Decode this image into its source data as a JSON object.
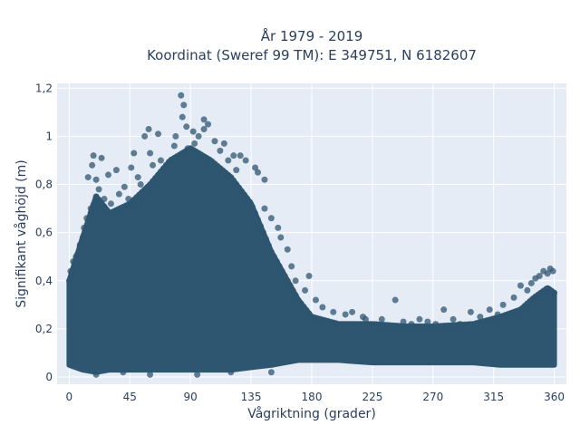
{
  "chart_data": {
    "type": "scatter",
    "title_line1": "År 1979 - 2019",
    "title_line2": "Koordinat (Sweref 99 TM): E 349751, N 6182607",
    "xlabel": "Vågriktning (grader)",
    "ylabel": "Signifikant våghöjd (m)",
    "xlim": [
      -9,
      369
    ],
    "ylim": [
      -0.03,
      1.22
    ],
    "xticks": [
      0,
      45,
      90,
      135,
      180,
      225,
      270,
      315,
      360
    ],
    "xtick_labels": [
      "0",
      "45",
      "90",
      "135",
      "180",
      "225",
      "270",
      "315",
      "360"
    ],
    "yticks": [
      0,
      0.2,
      0.4,
      0.6,
      0.8,
      1.0,
      1.2
    ],
    "ytick_labels": [
      "0",
      "0,2",
      "0,4",
      "0,6",
      "0,8",
      "1",
      "1,2"
    ],
    "grid": true,
    "background": "#e5ecf6",
    "marker_color": "#2f5670",
    "envelope": {
      "x": [
        0,
        10,
        20,
        30,
        45,
        60,
        75,
        90,
        105,
        120,
        135,
        150,
        160,
        170,
        180,
        200,
        225,
        250,
        270,
        300,
        320,
        335,
        345,
        355,
        360
      ],
      "y_upper": [
        0.4,
        0.58,
        0.75,
        0.68,
        0.72,
        0.8,
        0.9,
        0.95,
        0.9,
        0.83,
        0.72,
        0.52,
        0.42,
        0.32,
        0.25,
        0.22,
        0.22,
        0.21,
        0.21,
        0.22,
        0.25,
        0.28,
        0.33,
        0.37,
        0.35
      ],
      "y_lower": [
        0.05,
        0.03,
        0.02,
        0.03,
        0.03,
        0.03,
        0.03,
        0.03,
        0.03,
        0.03,
        0.04,
        0.05,
        0.06,
        0.07,
        0.07,
        0.07,
        0.06,
        0.06,
        0.06,
        0.06,
        0.05,
        0.05,
        0.05,
        0.05,
        0.05
      ]
    },
    "points": [
      {
        "x": 83,
        "y": 1.17
      },
      {
        "x": 85,
        "y": 1.13
      },
      {
        "x": 84,
        "y": 1.08
      },
      {
        "x": 100,
        "y": 1.07
      },
      {
        "x": 100,
        "y": 1.03
      },
      {
        "x": 103,
        "y": 1.05
      },
      {
        "x": 92,
        "y": 1.02
      },
      {
        "x": 59,
        "y": 1.03
      },
      {
        "x": 66,
        "y": 1.01
      },
      {
        "x": 56,
        "y": 1.0
      },
      {
        "x": 88,
        "y": 0.95
      },
      {
        "x": 79,
        "y": 1.0
      },
      {
        "x": 87,
        "y": 1.04
      },
      {
        "x": 108,
        "y": 0.98
      },
      {
        "x": 127,
        "y": 0.92
      },
      {
        "x": 131,
        "y": 0.9
      },
      {
        "x": 140,
        "y": 0.85
      },
      {
        "x": 145,
        "y": 0.82
      },
      {
        "x": 138,
        "y": 0.87
      },
      {
        "x": 48,
        "y": 0.93
      },
      {
        "x": 62,
        "y": 0.88
      },
      {
        "x": 18,
        "y": 0.92
      },
      {
        "x": 17,
        "y": 0.88
      },
      {
        "x": 20,
        "y": 0.82
      },
      {
        "x": 24,
        "y": 0.91
      },
      {
        "x": 29,
        "y": 0.84
      },
      {
        "x": 14,
        "y": 0.83
      },
      {
        "x": 46,
        "y": 0.87
      },
      {
        "x": 60,
        "y": 0.93
      },
      {
        "x": 78,
        "y": 0.96
      },
      {
        "x": 93,
        "y": 0.97
      },
      {
        "x": 96,
        "y": 1.0
      },
      {
        "x": 112,
        "y": 0.94
      },
      {
        "x": 118,
        "y": 0.9
      },
      {
        "x": 124,
        "y": 0.86
      },
      {
        "x": 35,
        "y": 0.86
      },
      {
        "x": 51,
        "y": 0.83
      },
      {
        "x": 145,
        "y": 0.7
      },
      {
        "x": 150,
        "y": 0.66
      },
      {
        "x": 155,
        "y": 0.62
      },
      {
        "x": 157,
        "y": 0.58
      },
      {
        "x": 162,
        "y": 0.53
      },
      {
        "x": 165,
        "y": 0.46
      },
      {
        "x": 168,
        "y": 0.4
      },
      {
        "x": 175,
        "y": 0.36
      },
      {
        "x": 178,
        "y": 0.42
      },
      {
        "x": 183,
        "y": 0.32
      },
      {
        "x": 188,
        "y": 0.29
      },
      {
        "x": 196,
        "y": 0.27
      },
      {
        "x": 205,
        "y": 0.26
      },
      {
        "x": 210,
        "y": 0.27
      },
      {
        "x": 218,
        "y": 0.25
      },
      {
        "x": 220,
        "y": 0.24
      },
      {
        "x": 232,
        "y": 0.24
      },
      {
        "x": 242,
        "y": 0.32
      },
      {
        "x": 248,
        "y": 0.23
      },
      {
        "x": 254,
        "y": 0.22
      },
      {
        "x": 260,
        "y": 0.24
      },
      {
        "x": 266,
        "y": 0.23
      },
      {
        "x": 272,
        "y": 0.22
      },
      {
        "x": 278,
        "y": 0.28
      },
      {
        "x": 285,
        "y": 0.24
      },
      {
        "x": 290,
        "y": 0.22
      },
      {
        "x": 298,
        "y": 0.27
      },
      {
        "x": 305,
        "y": 0.25
      },
      {
        "x": 312,
        "y": 0.28
      },
      {
        "x": 318,
        "y": 0.26
      },
      {
        "x": 322,
        "y": 0.3
      },
      {
        "x": 330,
        "y": 0.33
      },
      {
        "x": 335,
        "y": 0.38
      },
      {
        "x": 340,
        "y": 0.36
      },
      {
        "x": 343,
        "y": 0.39
      },
      {
        "x": 346,
        "y": 0.41
      },
      {
        "x": 349,
        "y": 0.42
      },
      {
        "x": 352,
        "y": 0.44
      },
      {
        "x": 355,
        "y": 0.43
      },
      {
        "x": 357,
        "y": 0.45
      },
      {
        "x": 359,
        "y": 0.44
      },
      {
        "x": 3,
        "y": 0.48
      },
      {
        "x": 5,
        "y": 0.5
      },
      {
        "x": 8,
        "y": 0.55
      },
      {
        "x": 11,
        "y": 0.62
      },
      {
        "x": 13,
        "y": 0.66
      },
      {
        "x": 1,
        "y": 0.44
      },
      {
        "x": 16,
        "y": 0.7
      },
      {
        "x": 22,
        "y": 0.78
      },
      {
        "x": 26,
        "y": 0.74
      },
      {
        "x": 31,
        "y": 0.72
      },
      {
        "x": 37,
        "y": 0.76
      },
      {
        "x": 41,
        "y": 0.79
      },
      {
        "x": 44,
        "y": 0.74
      },
      {
        "x": 53,
        "y": 0.8
      },
      {
        "x": 68,
        "y": 0.9
      },
      {
        "x": 72,
        "y": 0.88
      },
      {
        "x": 115,
        "y": 0.97
      },
      {
        "x": 122,
        "y": 0.92
      },
      {
        "x": 150,
        "y": 0.02
      },
      {
        "x": 95,
        "y": 0.01
      },
      {
        "x": 60,
        "y": 0.01
      },
      {
        "x": 20,
        "y": 0.01
      },
      {
        "x": 40,
        "y": 0.02
      },
      {
        "x": 120,
        "y": 0.02
      }
    ]
  }
}
